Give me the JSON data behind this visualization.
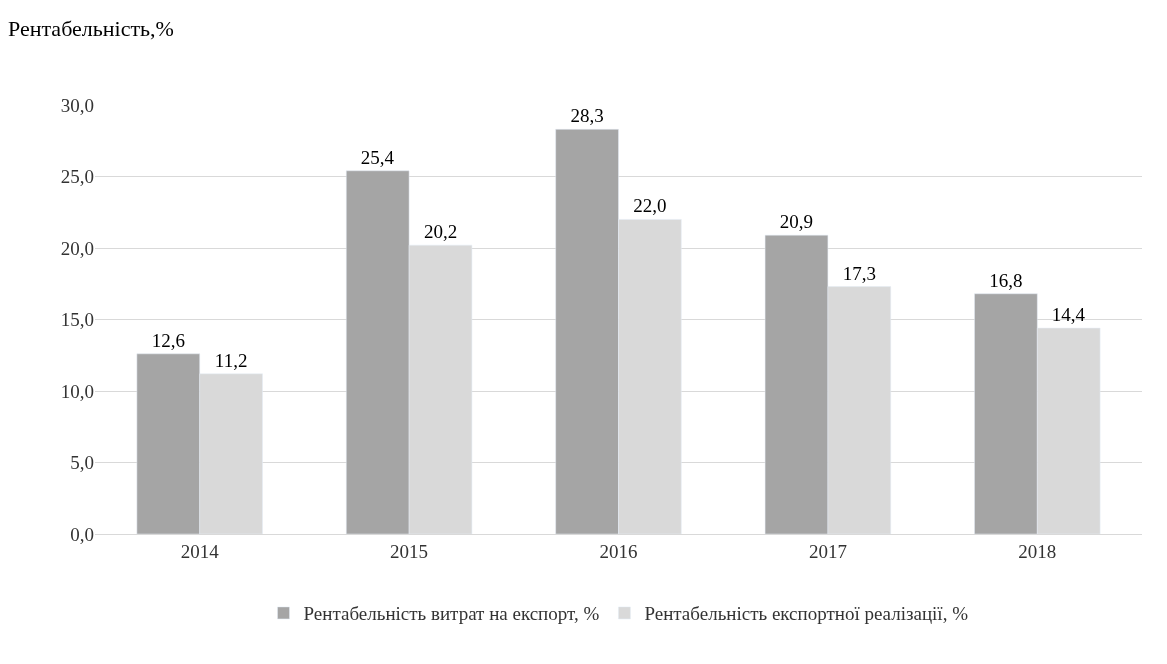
{
  "chart_data": {
    "type": "bar",
    "ylabel": "Рентабельність,%",
    "categories": [
      "2014",
      "2015",
      "2016",
      "2017",
      "2018"
    ],
    "series": [
      {
        "name": "Рентабельність витрат на експорт, %",
        "color": "#a5a5a5",
        "values": [
          12.6,
          25.4,
          28.3,
          20.9,
          16.8
        ],
        "value_labels": [
          "12,6",
          "25,4",
          "28,3",
          "20,9",
          "16,8"
        ]
      },
      {
        "name": "Рентабельність експортної реалізації, %",
        "color": "#d9d9d9",
        "values": [
          11.2,
          20.2,
          22.0,
          17.3,
          14.4
        ],
        "value_labels": [
          "11,2",
          "20,2",
          "22,0",
          "17,3",
          "14,4"
        ]
      }
    ],
    "ylim": [
      0,
      30
    ],
    "yticks": [
      {
        "value": 0,
        "label": "0,0"
      },
      {
        "value": 5,
        "label": "5,0"
      },
      {
        "value": 10,
        "label": "10,0"
      },
      {
        "value": 15,
        "label": "15,0"
      },
      {
        "value": 20,
        "label": "20,0"
      },
      {
        "value": 25,
        "label": "25,0"
      },
      {
        "value": 30,
        "label": "30,0"
      }
    ],
    "grid": "y",
    "legend": "bottom"
  }
}
